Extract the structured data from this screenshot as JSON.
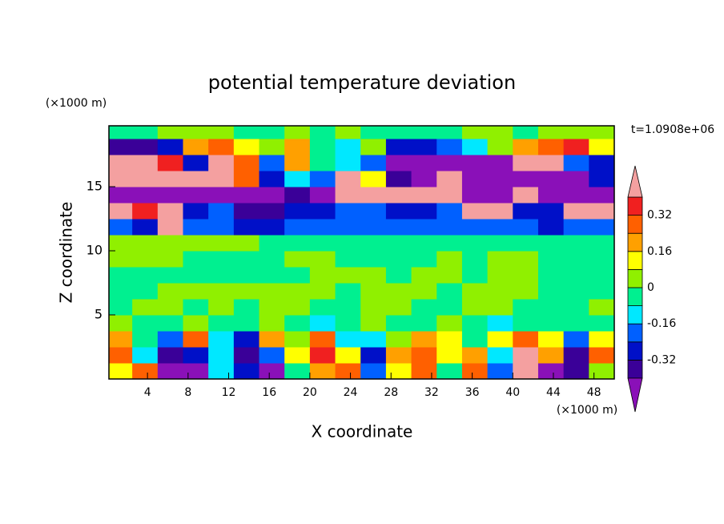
{
  "chart_data": {
    "type": "contour",
    "title": "potential temperature deviation",
    "y_unit_label": "(×1000 m)",
    "x_unit_label": "(×1000 m)",
    "time_label": "t=1.0908e+06",
    "xlabel": "X coordinate",
    "ylabel": "Z coordinate",
    "xlim": [
      0.2,
      50
    ],
    "ylim": [
      0,
      19.75
    ],
    "xticks": [
      4,
      8,
      12,
      16,
      20,
      24,
      28,
      32,
      36,
      40,
      44,
      48
    ],
    "yticks": [
      5,
      10,
      15
    ],
    "x": [
      1.25,
      3.75,
      6.25,
      8.75,
      11.25,
      13.75,
      16.25,
      18.75,
      21.25,
      23.75,
      26.25,
      28.75,
      31.25,
      33.75,
      36.25,
      38.75,
      41.25,
      43.75,
      46.25,
      48.75
    ],
    "y": [
      0.625,
      1.875,
      3.125,
      4.375,
      5.625,
      6.875,
      8.125,
      9.375,
      10.625,
      11.875,
      13.125,
      14.375,
      15.625,
      16.875,
      18.125,
      19.375
    ],
    "values": [
      [
        0.1,
        0.3,
        -0.45,
        -0.45,
        -0.1,
        -0.3,
        -0.45,
        -0.05,
        0.2,
        0.3,
        -0.2,
        0.1,
        0.25,
        -0.05,
        0.3,
        -0.2,
        0.45,
        -0.45,
        -0.35,
        0.05
      ],
      [
        0.3,
        -0.1,
        -0.35,
        -0.3,
        -0.15,
        -0.4,
        -0.2,
        0.1,
        0.35,
        0.1,
        -0.25,
        0.2,
        0.3,
        0.1,
        0.2,
        -0.1,
        0.45,
        0.2,
        -0.4,
        0.3
      ],
      [
        0.2,
        -0.05,
        -0.2,
        0.3,
        -0.1,
        -0.3,
        0.2,
        0.05,
        0.25,
        -0.1,
        -0.15,
        0.05,
        0.2,
        0.1,
        -0.05,
        0.15,
        0.3,
        0.1,
        -0.2,
        0.15
      ],
      [
        0.02,
        -0.03,
        -0.02,
        0.02,
        -0.05,
        -0.02,
        0.03,
        -0.02,
        -0.1,
        -0.03,
        0.02,
        -0.02,
        -0.03,
        0.02,
        -0.02,
        -0.1,
        -0.03,
        -0.02,
        -0.03,
        -0.02
      ],
      [
        -0.02,
        0.02,
        0.03,
        -0.02,
        0.02,
        -0.02,
        0.03,
        0.02,
        -0.02,
        -0.02,
        0.03,
        0.02,
        -0.02,
        -0.02,
        0.03,
        0.02,
        -0.02,
        -0.02,
        -0.02,
        0.02
      ],
      [
        -0.02,
        -0.02,
        0.03,
        0.02,
        0.02,
        0.03,
        0.02,
        0.02,
        0.03,
        -0.02,
        0.02,
        0.03,
        0.02,
        -0.02,
        0.02,
        0.03,
        0.02,
        -0.02,
        -0.02,
        -0.02
      ],
      [
        -0.02,
        -0.02,
        -0.02,
        -0.02,
        -0.02,
        -0.02,
        -0.02,
        -0.02,
        0.02,
        0.02,
        0.02,
        -0.02,
        0.02,
        0.02,
        -0.02,
        0.02,
        0.02,
        -0.02,
        -0.02,
        -0.02
      ],
      [
        0.02,
        0.02,
        0.02,
        -0.02,
        -0.02,
        -0.02,
        -0.02,
        0.02,
        0.02,
        -0.02,
        -0.02,
        -0.02,
        -0.02,
        0.02,
        -0.02,
        0.02,
        0.02,
        -0.02,
        -0.02,
        -0.02
      ],
      [
        0.02,
        0.02,
        0.02,
        0.02,
        0.02,
        0.02,
        -0.02,
        -0.02,
        -0.02,
        -0.02,
        -0.02,
        -0.02,
        -0.02,
        -0.02,
        -0.02,
        -0.02,
        -0.02,
        -0.02,
        -0.02,
        -0.02
      ],
      [
        -0.2,
        -0.3,
        0.45,
        -0.2,
        -0.2,
        -0.3,
        -0.3,
        -0.2,
        -0.2,
        -0.2,
        -0.2,
        -0.2,
        -0.2,
        -0.2,
        -0.2,
        -0.2,
        -0.2,
        -0.3,
        -0.2,
        -0.2
      ],
      [
        0.45,
        0.35,
        0.45,
        -0.3,
        -0.2,
        -0.35,
        -0.35,
        -0.3,
        -0.3,
        -0.2,
        -0.2,
        -0.3,
        -0.3,
        -0.2,
        0.45,
        0.45,
        -0.3,
        -0.3,
        0.45,
        0.4
      ],
      [
        -0.45,
        -0.45,
        -0.45,
        -0.45,
        -0.45,
        -0.45,
        -0.45,
        -0.35,
        -0.45,
        0.45,
        0.45,
        0.45,
        0.45,
        0.45,
        -0.45,
        -0.45,
        0.45,
        -0.45,
        -0.45,
        -0.45
      ],
      [
        0.45,
        0.45,
        0.45,
        0.45,
        0.45,
        0.3,
        -0.3,
        -0.1,
        -0.2,
        0.45,
        0.1,
        -0.35,
        -0.45,
        0.45,
        -0.45,
        -0.45,
        -0.45,
        -0.45,
        -0.45,
        -0.3
      ],
      [
        0.45,
        0.45,
        0.35,
        -0.3,
        0.45,
        0.3,
        -0.2,
        0.2,
        -0.05,
        -0.1,
        -0.2,
        -0.45,
        -0.45,
        -0.45,
        -0.45,
        -0.45,
        0.45,
        0.45,
        -0.2,
        -0.3
      ],
      [
        -0.35,
        -0.4,
        -0.3,
        0.2,
        0.3,
        0.15,
        0.05,
        0.2,
        -0.05,
        -0.1,
        0.02,
        -0.3,
        -0.3,
        -0.2,
        -0.1,
        0.05,
        0.2,
        0.3,
        0.35,
        0.1
      ],
      [
        -0.05,
        -0.02,
        0.02,
        0.05,
        0.02,
        -0.02,
        -0.02,
        0.02,
        -0.02,
        0.02,
        -0.02,
        -0.02,
        -0.02,
        -0.02,
        0.02,
        0.02,
        -0.02,
        0.02,
        0.05,
        0.02
      ]
    ],
    "levels": [
      -0.4,
      -0.32,
      -0.24,
      -0.16,
      -0.08,
      0,
      0.08,
      0.16,
      0.24,
      0.32,
      0.4
    ],
    "colors": [
      "#8a10b8",
      "#3a0098",
      "#0010c8",
      "#0060ff",
      "#00e8ff",
      "#00f090",
      "#90f000",
      "#ffff00",
      "#ffa000",
      "#ff6000",
      "#f02020",
      "#f4a0a0"
    ],
    "colorbar_ticks": [
      -0.32,
      -0.16,
      0,
      0.16,
      0.32
    ]
  }
}
